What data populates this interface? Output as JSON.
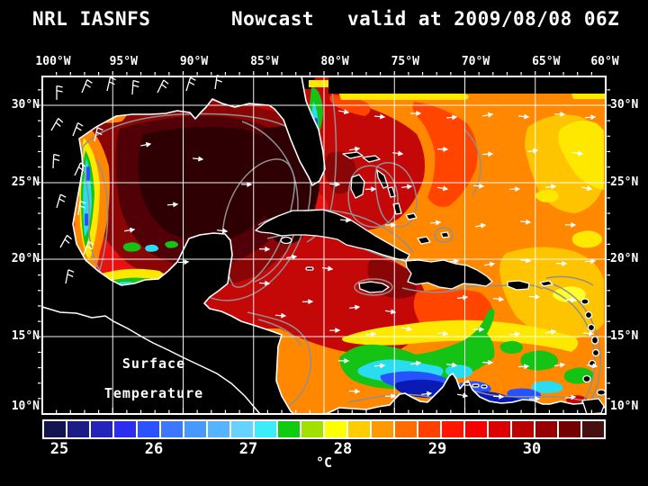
{
  "header": {
    "product": "NRL IASNFS",
    "mode": "Nowcast",
    "valid": "valid at 2009/08/08 06Z"
  },
  "map": {
    "lon_labels": [
      "100°W",
      "95°W",
      "90°W",
      "85°W",
      "80°W",
      "75°W",
      "70°W",
      "65°W",
      "60°W"
    ],
    "lat_labels": [
      "30°N",
      "25°N",
      "20°N",
      "15°N",
      "10°N"
    ],
    "annotation": {
      "line1": "Surface",
      "line2": "Temperature"
    }
  },
  "colorbar": {
    "tick_labels": [
      "25",
      "26",
      "27",
      "28",
      "29",
      "30"
    ],
    "unit": "°C",
    "cell_colors": [
      "#141450",
      "#1c1c86",
      "#2424bb",
      "#2d2df0",
      "#2a52ff",
      "#3c78ff",
      "#4899ff",
      "#55b4ff",
      "#66d2ff",
      "#3cecf8",
      "#10cc10",
      "#a2e000",
      "#ffff00",
      "#ffcc00",
      "#ff9900",
      "#ff6d00",
      "#ff4000",
      "#ff1500",
      "#f60000",
      "#dd0000",
      "#bb0000",
      "#970000",
      "#740000",
      "#461010"
    ]
  },
  "palette": {
    "bg": "#000000",
    "frame": "#ffffff",
    "grid": "#ffffff",
    "coast": "#ffffff",
    "contour": "#909090",
    "land": "#000000",
    "darkest": "#2e0004",
    "maroon": "#520008",
    "darkred": "#8a0505",
    "red": "#c40808",
    "brightred": "#e81010",
    "redorange": "#ff4500",
    "orange": "#ff8800",
    "amber": "#ffc400",
    "yellow": "#ffe800",
    "brightyellow": "#ffff30",
    "green": "#14c314",
    "cyan": "#2adcf0",
    "blue": "#2753ff",
    "darkblue": "#0a1ab4",
    "venred": "#cc0000",
    "venmaroon": "#6a0008"
  }
}
